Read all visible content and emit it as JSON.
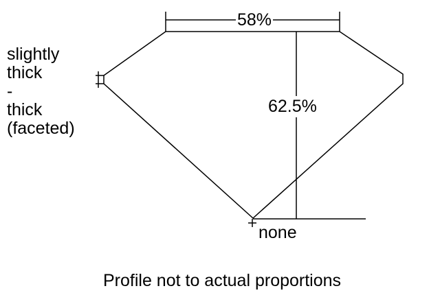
{
  "girdle_label": [
    "slightly",
    "thick",
    "-",
    "thick",
    "(faceted)"
  ],
  "table_label": "58%",
  "depth_label": "62.5%",
  "culet_label": "none",
  "caption": "Profile not to actual proportions",
  "colors": {
    "line": "#000000",
    "background": "#ffffff"
  }
}
